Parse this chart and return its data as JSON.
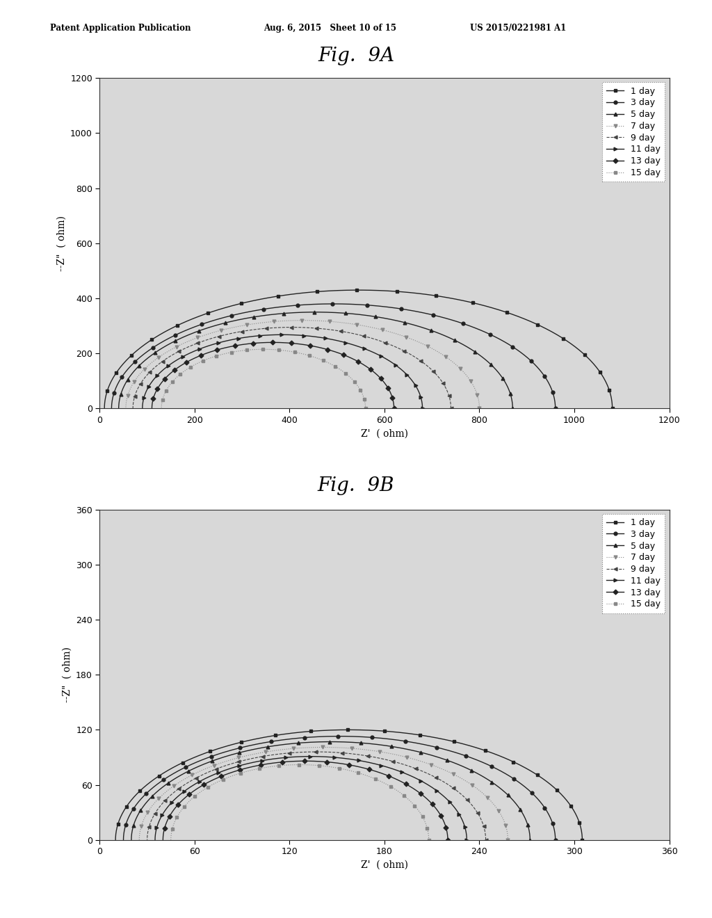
{
  "header_left": "Patent Application Publication",
  "header_mid": "Aug. 6, 2015   Sheet 10 of 15",
  "header_right": "US 2015/0221981 A1",
  "fig9A_title": "Fig.  9A",
  "fig9B_title": "Fig.  9B",
  "xlabel": "Z'  ( ohm)",
  "ylabel9A": "--Z\"  ( ohm)",
  "ylabel9B": "--Z\"  ( ohm)",
  "fig9A": {
    "xlim": [
      0,
      1200
    ],
    "ylim": [
      0,
      1200
    ],
    "xticks": [
      0,
      200,
      400,
      600,
      800,
      1000,
      1200
    ],
    "yticks": [
      0,
      200,
      400,
      600,
      800,
      1000,
      1200
    ],
    "R_starts": [
      10,
      25,
      40,
      55,
      70,
      90,
      110,
      130
    ],
    "R_ends": [
      1080,
      960,
      870,
      800,
      740,
      680,
      620,
      560
    ],
    "max_y": [
      430,
      380,
      350,
      320,
      295,
      268,
      240,
      215
    ]
  },
  "fig9B": {
    "xlim": [
      0,
      360
    ],
    "ylim": [
      0,
      360
    ],
    "xticks": [
      0,
      60,
      120,
      180,
      240,
      300,
      360
    ],
    "yticks": [
      0,
      60,
      120,
      180,
      240,
      300,
      360
    ],
    "R_starts": [
      10,
      15,
      20,
      25,
      30,
      35,
      40,
      45
    ],
    "R_ends": [
      305,
      288,
      272,
      258,
      244,
      232,
      220,
      208
    ],
    "max_y": [
      120,
      113,
      107,
      101,
      96,
      91,
      86,
      82
    ]
  },
  "legend_labels": [
    "1 day",
    "3 day",
    "5 day",
    "7 day",
    "9 day",
    "11 day",
    "13 day",
    "15 day"
  ],
  "markers": [
    "s",
    "o",
    "^",
    "v",
    "<",
    ">",
    "D",
    "s"
  ],
  "linestyles": [
    "-",
    "-",
    "-",
    ":",
    "--",
    "-",
    "-",
    ":"
  ],
  "colors": [
    "#222222",
    "#222222",
    "#222222",
    "#888888",
    "#444444",
    "#222222",
    "#222222",
    "#888888"
  ],
  "linewidths": [
    1.0,
    1.0,
    1.0,
    0.8,
    0.8,
    1.0,
    1.0,
    0.8
  ],
  "background_color": "#ffffff",
  "plot_bg": "#d8d8d8"
}
